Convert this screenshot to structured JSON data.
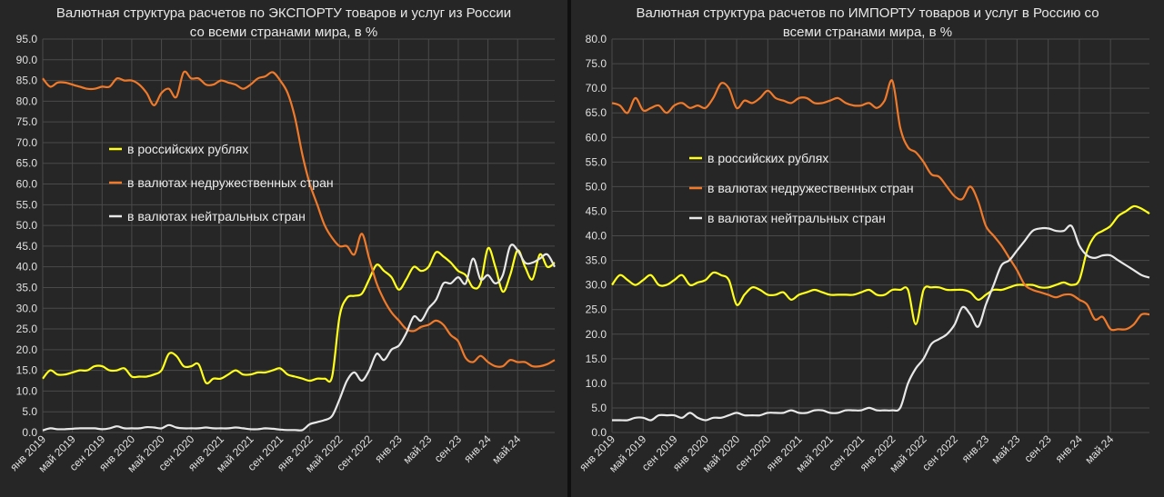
{
  "chart_data": [
    {
      "type": "line",
      "title_line1": "Валютная структура расчетов по ЭКСПОРТУ товаров и услуг из России",
      "title_line2": "со всеми странами мира, в %",
      "ylim": [
        0,
        95
      ],
      "ytick_step": 5,
      "ytick_labels": [
        "0.0",
        "5.0",
        "10.0",
        "15.0",
        "20.0",
        "25.0",
        "30.0",
        "35.0",
        "40.0",
        "45.0",
        "50.0",
        "55.0",
        "60.0",
        "65.0",
        "70.0",
        "75.0",
        "80.0",
        "85.0",
        "90.0",
        "95.0"
      ],
      "xtick_labels": [
        "янв 2019",
        "май 2019",
        "сен 2019",
        "янв 2020",
        "май 2020",
        "сен 2020",
        "янв 2021",
        "май 2021",
        "сен 2021",
        "янв 2022",
        "май 2022",
        "сен 2022",
        "янв.23",
        "май.23",
        "сен.23",
        "янв.24",
        "май.24"
      ],
      "x_count": 70,
      "series": [
        {
          "name": "в российских рублях",
          "color": "#ffff1a",
          "values": [
            13,
            15,
            14,
            14,
            14.5,
            15,
            15,
            16,
            16,
            15,
            15,
            15.5,
            13.5,
            13.5,
            13.5,
            14,
            15,
            19,
            18.5,
            16,
            16,
            16.5,
            12,
            13,
            13,
            14,
            15,
            14,
            14,
            14.5,
            14.5,
            15,
            15.5,
            14,
            13.5,
            13,
            12.5,
            13,
            13,
            13.5,
            28,
            32.5,
            33,
            33.5,
            37,
            40.5,
            39,
            37.5,
            34.5,
            37,
            40,
            39,
            40,
            43.5,
            42.5,
            41,
            39,
            38,
            35,
            36,
            44.5,
            40,
            34,
            38,
            44,
            40,
            37,
            43,
            40,
            41
          ]
        },
        {
          "name": "в валютах недружественных стран",
          "color": "#f07a2a",
          "values": [
            85.5,
            83.5,
            84.5,
            84.5,
            84,
            83.5,
            83,
            83,
            83.5,
            83.5,
            85.5,
            85,
            85,
            84,
            82,
            79,
            82,
            83,
            81,
            87,
            85.5,
            85.5,
            84,
            84,
            85,
            84.5,
            84,
            83,
            84,
            85.5,
            86,
            87,
            85,
            82,
            76,
            67,
            60,
            55,
            50,
            47,
            45,
            45,
            43,
            48,
            42,
            36,
            32,
            29,
            27,
            25,
            24.5,
            25.5,
            26,
            27,
            26,
            23.5,
            22,
            18,
            17,
            18.5,
            17,
            16,
            16,
            17.5,
            17,
            17,
            16,
            16,
            16.5,
            17.5
          ]
        },
        {
          "name": "в валютах нейтральных стран",
          "color": "#e8e8e8",
          "values": [
            0.5,
            1,
            0.8,
            0.8,
            0.9,
            1,
            1,
            1,
            0.8,
            1,
            1.5,
            1,
            1,
            1,
            1.3,
            1.2,
            1,
            1.8,
            1.2,
            1,
            1,
            1,
            1.2,
            1,
            1,
            1,
            1.2,
            1,
            0.8,
            0.8,
            1,
            0.9,
            0.7,
            0.6,
            0.6,
            0.6,
            2,
            2.5,
            3,
            4,
            8,
            12.5,
            14.5,
            12.5,
            15,
            19,
            17.5,
            20,
            21,
            24,
            28,
            27,
            30,
            32,
            36,
            36,
            37.5,
            36,
            42,
            37,
            38,
            36,
            38,
            45,
            44,
            41,
            41,
            42,
            43,
            40
          ]
        }
      ],
      "legend": [
        "в российских рублях",
        "в валютах недружественных стран",
        "в валютах нейтральных стран"
      ]
    },
    {
      "type": "line",
      "title_line1": "Валютная структура расчетов по ИМПОРТУ товаров и услуг в Россию со",
      "title_line2": "всеми странами мира, в %",
      "ylim": [
        0,
        80
      ],
      "ytick_step": 5,
      "ytick_labels": [
        "0.0",
        "5.0",
        "10.0",
        "15.0",
        "20.0",
        "25.0",
        "30.0",
        "35.0",
        "40.0",
        "45.0",
        "50.0",
        "55.0",
        "60.0",
        "65.0",
        "70.0",
        "75.0",
        "80.0"
      ],
      "xtick_labels": [
        "янв 2019",
        "май 2019",
        "сен 2019",
        "янв 2020",
        "май 2020",
        "сен 2020",
        "янв 2021",
        "май 2021",
        "сен 2021",
        "янв 2022",
        "май 2022",
        "сен 2022",
        "янв.23",
        "май.23",
        "сен.23",
        "янв.24",
        "май.24"
      ],
      "x_count": 70,
      "series": [
        {
          "name": "в российских рублях",
          "color": "#ffff1a",
          "values": [
            30,
            32,
            31,
            30,
            31,
            32,
            30,
            30,
            31,
            32,
            30,
            30.5,
            31,
            32.5,
            32,
            31,
            26,
            28,
            29.5,
            29,
            28,
            28,
            28.5,
            27,
            28,
            28.5,
            29,
            28.5,
            28,
            28,
            28,
            28,
            28.5,
            29,
            28,
            28,
            29,
            29,
            29,
            22,
            29,
            29.5,
            29.5,
            29,
            29,
            29,
            28.5,
            27,
            28,
            29,
            29,
            29.5,
            30,
            30,
            30,
            29.5,
            29.5,
            30,
            30.5,
            30,
            31,
            37,
            40,
            41,
            42,
            44,
            45,
            46,
            45.5,
            44.5
          ]
        },
        {
          "name": "в валютах недружественных стран",
          "color": "#f07a2a",
          "values": [
            67,
            66.5,
            65,
            68,
            65.5,
            66,
            66.5,
            65,
            66.5,
            67,
            66,
            66.5,
            66,
            68,
            71,
            70,
            66,
            67.5,
            67,
            68,
            69.5,
            68,
            67.5,
            67,
            68,
            68,
            67,
            67,
            67.5,
            68,
            67,
            66.5,
            66.5,
            67,
            66,
            67.5,
            71.5,
            62,
            58,
            57,
            55,
            52.5,
            52,
            50,
            48,
            47.5,
            50,
            47,
            42,
            40,
            38,
            35.5,
            33,
            30,
            29,
            28.5,
            28,
            27.5,
            28,
            28,
            27,
            26,
            23,
            23.5,
            21,
            21,
            21,
            22,
            24,
            24
          ]
        },
        {
          "name": "в валютах нейтральных стран",
          "color": "#e8e8e8",
          "values": [
            2.5,
            2.5,
            2.5,
            3,
            3,
            2.5,
            3.5,
            3.5,
            3.5,
            3,
            4,
            3,
            2.5,
            3,
            3,
            3.5,
            4,
            3.5,
            3.5,
            3.5,
            4,
            4,
            4,
            4.5,
            4,
            4,
            4.5,
            4.5,
            4,
            4,
            4.5,
            4.5,
            4.5,
            5,
            4.5,
            4.5,
            4.5,
            5,
            10,
            13,
            15,
            18,
            19,
            20,
            22,
            25.5,
            24,
            21.5,
            26,
            30,
            34,
            35,
            37,
            39,
            41,
            41.5,
            41.5,
            41,
            41,
            42,
            38,
            36,
            35.5,
            36,
            36,
            35,
            34,
            33,
            32,
            31.5
          ]
        }
      ],
      "legend": [
        "в российских рублях",
        "в валютах недружественных стран",
        "в валютах нейтральных стран"
      ]
    }
  ]
}
